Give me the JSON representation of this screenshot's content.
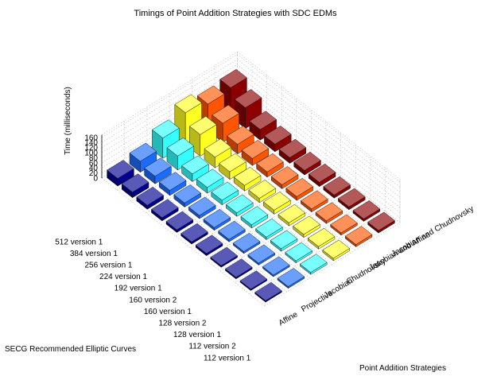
{
  "chart_data": {
    "type": "bar3d",
    "title": "Timings of Point Addition Strategies with SDC EDMs",
    "zlabel": "Time (milliseconds)",
    "xlabel": "SECG Recommended Elliptic Curves",
    "ylabel": "Point Addition Strategies",
    "zlim": [
      0,
      170
    ],
    "zticks": [
      0,
      20,
      40,
      60,
      80,
      100,
      120,
      140,
      160
    ],
    "curves": [
      "512 version 1",
      "384 version 1",
      "256 version 1",
      "224 version 1",
      "192 version 1",
      "160 version 2",
      "160 version 1",
      "128 version 2",
      "128 version 1",
      "112 version 2",
      "112 version 1"
    ],
    "strategies": [
      "Affine",
      "Projective",
      "Jacobian",
      "Chudnovsky",
      "Jacobian and Affine",
      "Jacobian and Chudnovsky"
    ],
    "colors": [
      "#000090",
      "#1a6bff",
      "#33ffff",
      "#ffff22",
      "#ff5500",
      "#8c0000"
    ],
    "grid": true,
    "values": [
      [
        30,
        43,
        80,
        125,
        105,
        115
      ],
      [
        22,
        30,
        55,
        85,
        75,
        82
      ],
      [
        16,
        20,
        30,
        42,
        38,
        42
      ],
      [
        13,
        16,
        23,
        30,
        28,
        30
      ],
      [
        11,
        13,
        18,
        22,
        21,
        23
      ],
      [
        9,
        11,
        14,
        17,
        16,
        18
      ],
      [
        9,
        10,
        13,
        16,
        15,
        17
      ],
      [
        7,
        8,
        10,
        12,
        12,
        13
      ],
      [
        7,
        8,
        10,
        12,
        11,
        12
      ],
      [
        6,
        7,
        8,
        10,
        9,
        10
      ],
      [
        6,
        7,
        8,
        9,
        9,
        10
      ]
    ]
  }
}
